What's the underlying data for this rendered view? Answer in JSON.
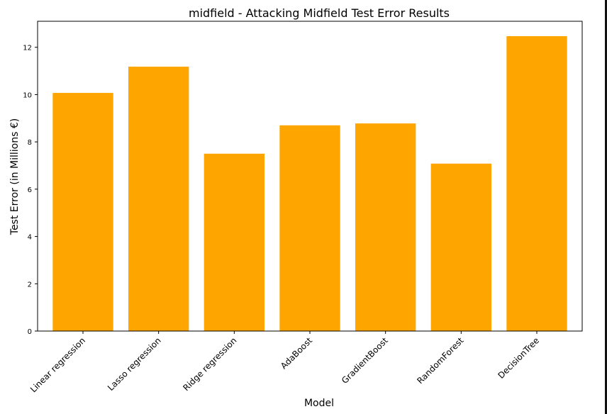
{
  "chart_data": {
    "type": "bar",
    "title": "midfield - Attacking Midfield Test Error Results",
    "xlabel": "Model",
    "ylabel": "Test Error (in Millions €)",
    "categories": [
      "Linear regression",
      "Lasso regression",
      "Ridge regression",
      "AdaBoost",
      "GradientBoost",
      "RandomForest",
      "DecisionTree"
    ],
    "values": [
      10.07,
      11.18,
      7.5,
      8.7,
      8.78,
      7.08,
      12.47
    ],
    "yticks": [
      "0",
      "2",
      "4",
      "6",
      "8",
      "10",
      "12"
    ],
    "ylim": [
      0,
      13.1
    ],
    "grid": false,
    "bar_color": "#ffa500"
  }
}
